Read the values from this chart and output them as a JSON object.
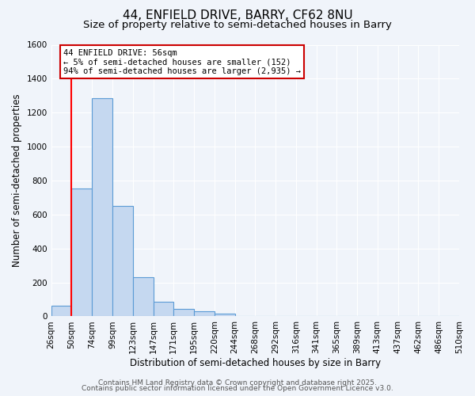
{
  "title": "44, ENFIELD DRIVE, BARRY, CF62 8NU",
  "subtitle": "Size of property relative to semi-detached houses in Barry",
  "xlabel": "Distribution of semi-detached houses by size in Barry",
  "ylabel": "Number of semi-detached properties",
  "bin_labels": [
    "26sqm",
    "50sqm",
    "74sqm",
    "99sqm",
    "123sqm",
    "147sqm",
    "171sqm",
    "195sqm",
    "220sqm",
    "244sqm",
    "268sqm",
    "292sqm",
    "316sqm",
    "341sqm",
    "365sqm",
    "389sqm",
    "413sqm",
    "437sqm",
    "462sqm",
    "486sqm",
    "510sqm"
  ],
  "bar_values": [
    65,
    755,
    1285,
    650,
    230,
    85,
    45,
    30,
    15,
    0,
    0,
    0,
    0,
    0,
    0,
    0,
    0,
    0,
    0,
    0
  ],
  "bar_color": "#c5d8f0",
  "bar_edge_color": "#5b9bd5",
  "red_line_x": 1,
  "annotation_title": "44 ENFIELD DRIVE: 56sqm",
  "annotation_line1": "← 5% of semi-detached houses are smaller (152)",
  "annotation_line2": "94% of semi-detached houses are larger (2,935) →",
  "annotation_box_color": "#ffffff",
  "annotation_box_edge": "#cc0000",
  "ylim": [
    0,
    1600
  ],
  "yticks": [
    0,
    200,
    400,
    600,
    800,
    1000,
    1200,
    1400,
    1600
  ],
  "footer1": "Contains HM Land Registry data © Crown copyright and database right 2025.",
  "footer2": "Contains public sector information licensed under the Open Government Licence v3.0.",
  "bg_color": "#f0f4fa",
  "plot_bg_color": "#f0f4fa",
  "grid_color": "#ffffff",
  "title_fontsize": 11,
  "subtitle_fontsize": 9.5,
  "axis_label_fontsize": 8.5,
  "tick_fontsize": 7.5,
  "footer_fontsize": 6.5,
  "annot_fontsize": 7.5
}
